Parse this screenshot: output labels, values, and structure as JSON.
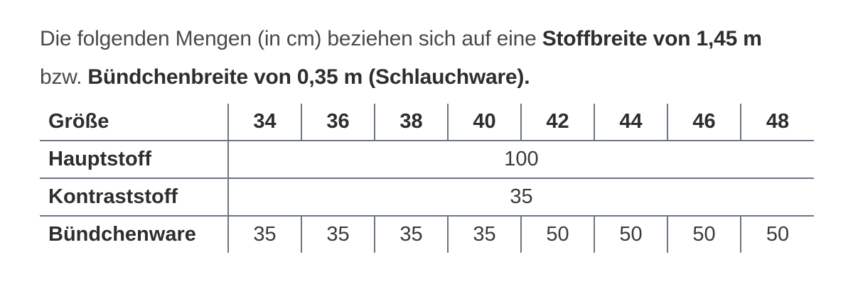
{
  "intro": {
    "line1_prefix": "Die folgenden Mengen (in cm) beziehen sich auf eine ",
    "line1_bold": "Stoffbreite von 1,45 m",
    "line2_prefix": "bzw. ",
    "line2_bold": "Bündchenbreite von 0,35 m (Schlauchware)."
  },
  "table": {
    "header_label": "Größe",
    "sizes": [
      "34",
      "36",
      "38",
      "40",
      "42",
      "44",
      "46",
      "48"
    ],
    "rows": [
      {
        "label": "Hauptstoff",
        "merged_value": "100"
      },
      {
        "label": "Kontraststoff",
        "merged_value": "35"
      },
      {
        "label": "Bündchenware",
        "values": [
          "35",
          "35",
          "35",
          "35",
          "50",
          "50",
          "50",
          "50"
        ]
      }
    ]
  }
}
